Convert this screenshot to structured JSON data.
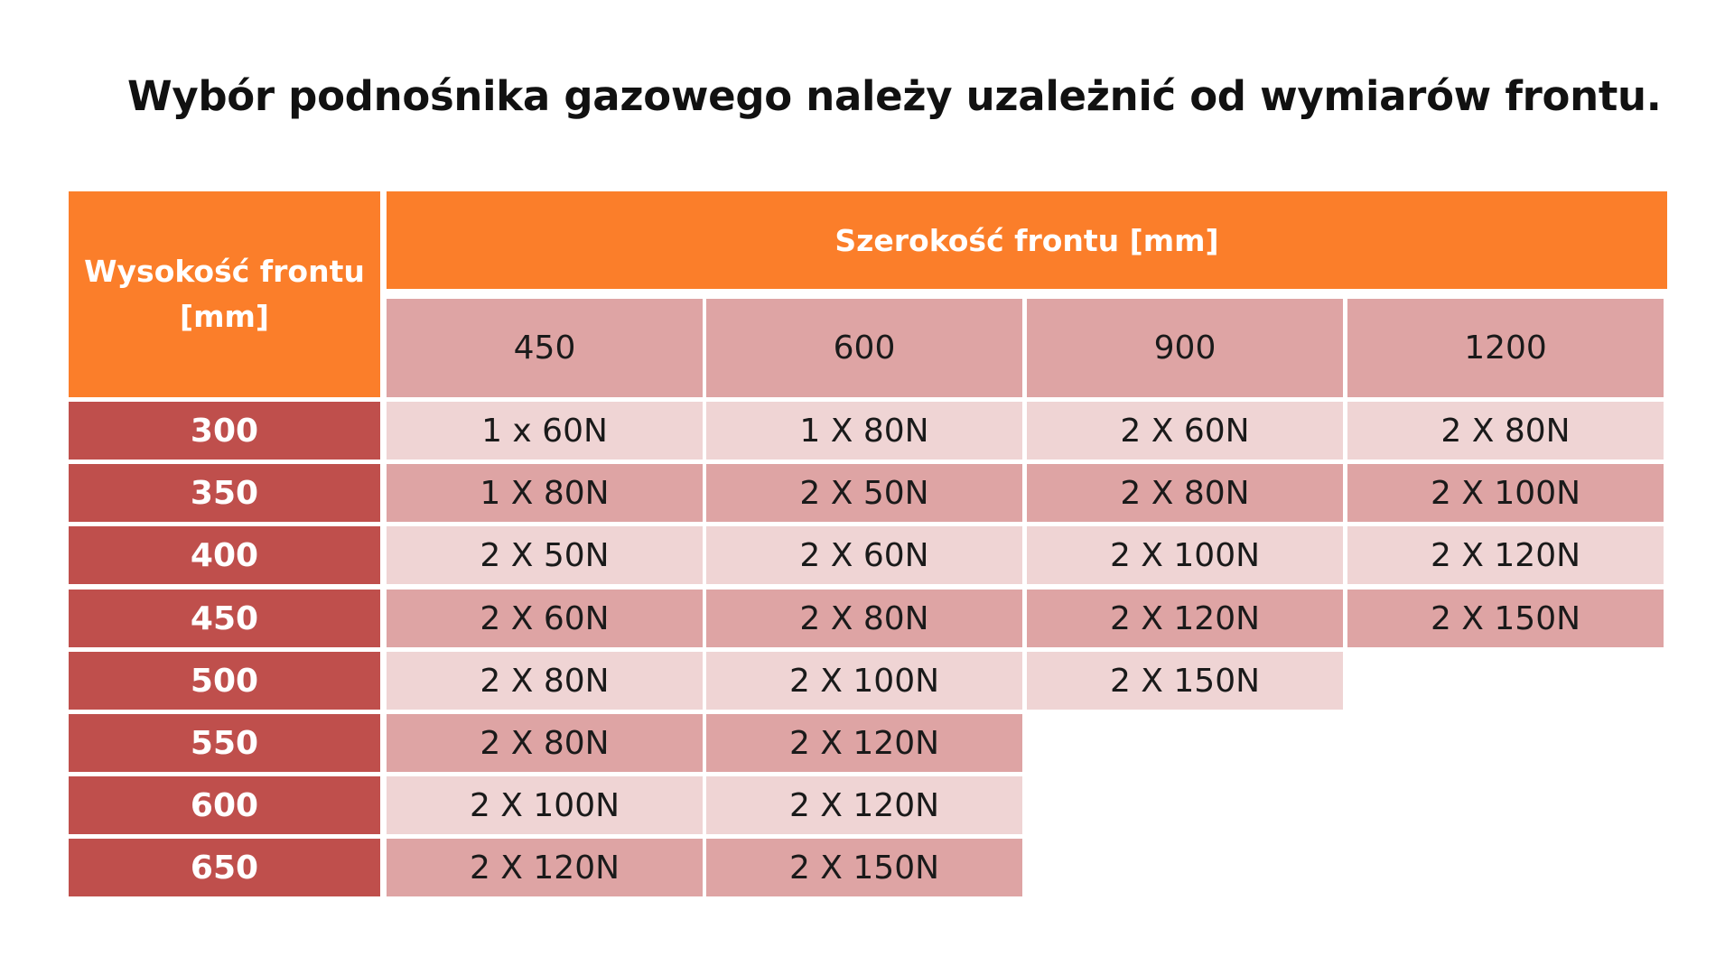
{
  "title": "Wybór podnośnika gazowego należy uzależnić od wymiarów frontu.",
  "table": {
    "corner_header": "Wysokość frontu [mm]",
    "group_header": "Szerokość frontu [mm]",
    "columns": [
      "450",
      "600",
      "900",
      "1200"
    ],
    "rows": [
      {
        "height": "300",
        "cells": [
          "1 x 60N",
          "1 X 80N",
          "2 X 60N",
          "2 X 80N"
        ]
      },
      {
        "height": "350",
        "cells": [
          "1 X 80N",
          "2 X 50N",
          "2 X 80N",
          "2 X 100N"
        ]
      },
      {
        "height": "400",
        "cells": [
          "2 X 50N",
          "2 X 60N",
          "2 X 100N",
          "2 X 120N"
        ]
      },
      {
        "height": "450",
        "cells": [
          "2 X 60N",
          "2 X 80N",
          "2 X 120N",
          "2 X 150N"
        ]
      },
      {
        "height": "500",
        "cells": [
          "2 X 80N",
          "2 X 100N",
          "2 X 150N",
          ""
        ]
      },
      {
        "height": "550",
        "cells": [
          "2 X 80N",
          "2 X 120N",
          "",
          ""
        ]
      },
      {
        "height": "600",
        "cells": [
          "2 X 100N",
          "2 X 120N",
          "",
          ""
        ]
      },
      {
        "height": "650",
        "cells": [
          "2 X 120N",
          "2 X 150N",
          "",
          ""
        ]
      }
    ]
  },
  "colors": {
    "header_orange": "#fb7e2a",
    "row_header_red": "#bf4f4c",
    "cell_dark_pink": "#dea4a4",
    "cell_light_pink": "#efd4d4"
  }
}
